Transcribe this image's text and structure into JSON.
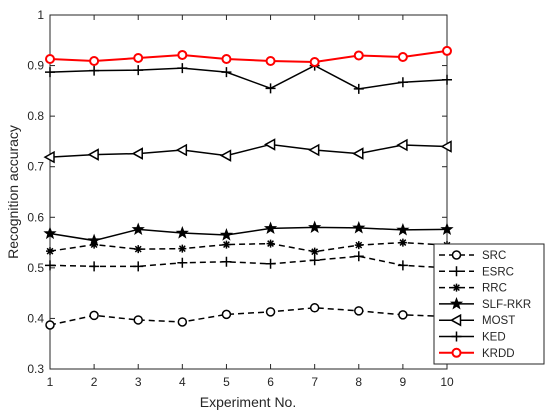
{
  "chart_data": {
    "type": "line",
    "xlabel": "Experiment No.",
    "ylabel": "Recognition accuracy",
    "x": [
      1,
      2,
      3,
      4,
      5,
      6,
      7,
      8,
      9,
      10
    ],
    "xlim": [
      1,
      10
    ],
    "ylim": [
      0.3,
      1.0
    ],
    "xticks": [
      "1",
      "2",
      "3",
      "4",
      "5",
      "6",
      "7",
      "8",
      "9",
      "10"
    ],
    "yticks": [
      "0.3",
      "0.4",
      "0.5",
      "0.6",
      "0.7",
      "0.8",
      "0.9",
      "1"
    ],
    "grid": false,
    "legend_position": "bottom-right",
    "series": [
      {
        "name": "SRC",
        "marker": "circle",
        "dash": true,
        "color": "#000000",
        "values": [
          0.387,
          0.406,
          0.397,
          0.393,
          0.408,
          0.413,
          0.421,
          0.415,
          0.407,
          0.404
        ]
      },
      {
        "name": "ESRC",
        "marker": "plus",
        "dash": true,
        "color": "#000000",
        "values": [
          0.505,
          0.503,
          0.503,
          0.51,
          0.512,
          0.508,
          0.515,
          0.523,
          0.505,
          0.5
        ]
      },
      {
        "name": "RRC",
        "marker": "asterisk",
        "dash": true,
        "color": "#000000",
        "values": [
          0.533,
          0.546,
          0.537,
          0.538,
          0.546,
          0.548,
          0.532,
          0.545,
          0.55,
          0.545
        ]
      },
      {
        "name": "SLF-RKR",
        "marker": "star",
        "dash": false,
        "color": "#000000",
        "values": [
          0.568,
          0.554,
          0.576,
          0.569,
          0.565,
          0.578,
          0.58,
          0.579,
          0.575,
          0.576
        ]
      },
      {
        "name": "MOST",
        "marker": "triangle-left",
        "dash": false,
        "color": "#000000",
        "values": [
          0.719,
          0.724,
          0.726,
          0.733,
          0.722,
          0.744,
          0.733,
          0.726,
          0.743,
          0.74
        ]
      },
      {
        "name": "KED",
        "marker": "plus",
        "dash": false,
        "color": "#000000",
        "values": [
          0.887,
          0.89,
          0.891,
          0.895,
          0.887,
          0.855,
          0.9,
          0.854,
          0.867,
          0.872
        ]
      },
      {
        "name": "KRDD",
        "marker": "circle",
        "dash": false,
        "color": "#ff0000",
        "values": [
          0.913,
          0.909,
          0.915,
          0.921,
          0.913,
          0.909,
          0.907,
          0.92,
          0.917,
          0.929
        ]
      }
    ]
  }
}
